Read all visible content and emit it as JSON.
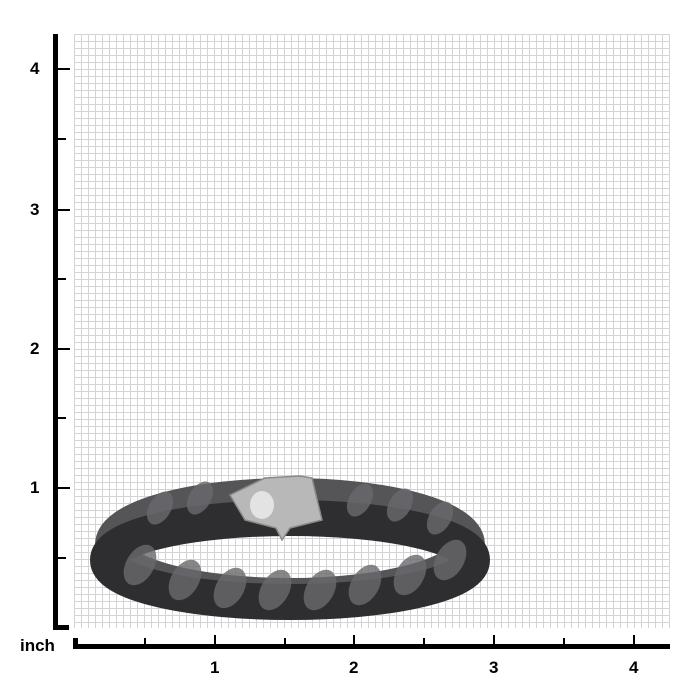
{
  "ruler": {
    "unit_label": "inch",
    "y_ticks": [
      "1",
      "2",
      "3",
      "4"
    ],
    "x_ticks": [
      "1",
      "2",
      "3",
      "4"
    ]
  },
  "product": {
    "name_icon": "curb-chain-bracelet",
    "colors": {
      "chain": "#3a3a3c",
      "clasp": "#b8b8b8",
      "grid": "#d4d4d4"
    }
  }
}
